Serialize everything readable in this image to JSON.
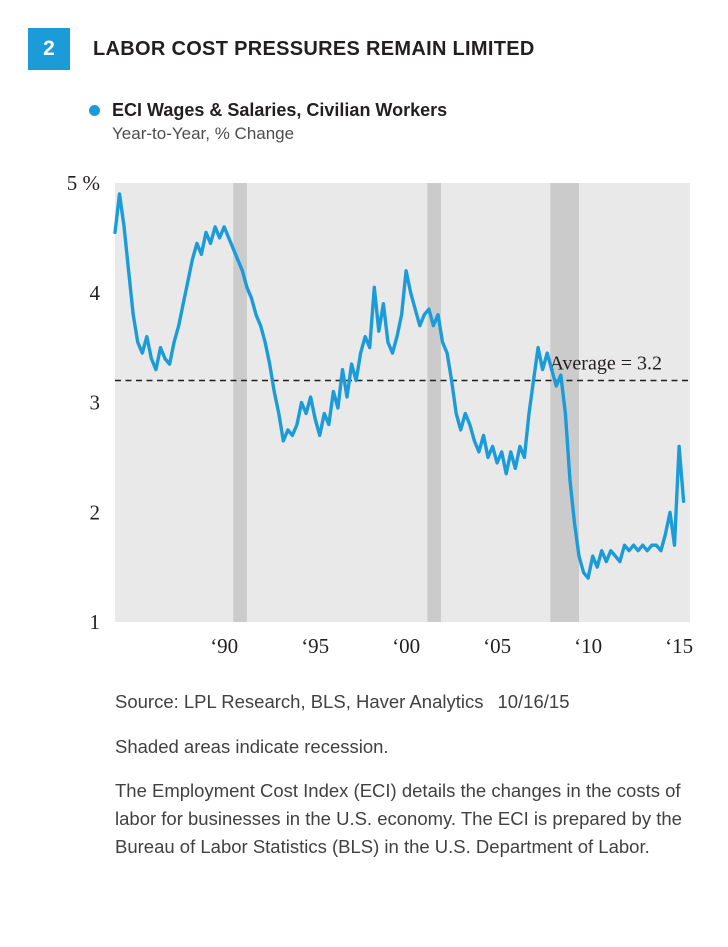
{
  "page": {
    "figure_number": "2",
    "title": "LABOR COST PRESSURES REMAIN LIMITED"
  },
  "legend": {
    "series": "ECI Wages & Salaries, Civilian Workers",
    "subtitle": "Year-to-Year, % Change"
  },
  "notes": {
    "source": "Source: LPL Research, BLS, Haver Analytics",
    "date": "10/16/15",
    "recession_note": "Shaded areas indicate recession.",
    "description": "The Employment Cost Index (ECI) details the changes in the costs of labor for businesses in the U.S. economy. The ECI is prepared by the Bureau of Labor Statistics (BLS) in the U.S. Department of Labor."
  },
  "colors": {
    "accent_blue": "#1b9cd8",
    "plot_background": "#e9e9e9",
    "recession_band": "#cbcbcb",
    "text_dark": "#231f20"
  },
  "chart_data": {
    "type": "line",
    "title": "LABOR COST PRESSURES REMAIN LIMITED",
    "series_label": "ECI Wages & Salaries, Civilian Workers",
    "series_sublabel": "Year-to-Year, % Change",
    "xlabel": "",
    "ylabel": "% (Year-to-Year Change)",
    "x_start": 1984.0,
    "x_step": 0.25,
    "xlim": [
      1984.0,
      2015.6
    ],
    "ylim": [
      1,
      5
    ],
    "grid": false,
    "legend_position": "top-left",
    "line_color": "#1b9cd8",
    "plot_bg": "#e9e9e9",
    "recession_color": "#cbcbcb",
    "average": 3.2,
    "average_label": "Average = 3.2",
    "y_ticks": [
      {
        "value": 5,
        "label": "5 %"
      },
      {
        "value": 4,
        "label": "4"
      },
      {
        "value": 3,
        "label": "3"
      },
      {
        "value": 2,
        "label": "2"
      },
      {
        "value": 1,
        "label": "1"
      }
    ],
    "x_ticks": [
      {
        "value": 1990,
        "label": "‘90"
      },
      {
        "value": 1995,
        "label": "‘95"
      },
      {
        "value": 2000,
        "label": "‘00"
      },
      {
        "value": 2005,
        "label": "‘05"
      },
      {
        "value": 2010,
        "label": "‘10"
      },
      {
        "value": 2015,
        "label": "‘15"
      }
    ],
    "recessions": [
      [
        1990.5,
        1991.25
      ],
      [
        2001.17,
        2001.92
      ],
      [
        2007.92,
        2009.5
      ]
    ],
    "values": [
      4.55,
      4.9,
      4.6,
      4.2,
      3.8,
      3.55,
      3.45,
      3.6,
      3.4,
      3.3,
      3.5,
      3.4,
      3.35,
      3.55,
      3.7,
      3.9,
      4.1,
      4.3,
      4.45,
      4.35,
      4.55,
      4.45,
      4.6,
      4.5,
      4.6,
      4.5,
      4.4,
      4.3,
      4.2,
      4.05,
      3.95,
      3.8,
      3.7,
      3.55,
      3.35,
      3.1,
      2.9,
      2.65,
      2.75,
      2.7,
      2.8,
      3.0,
      2.9,
      3.05,
      2.85,
      2.7,
      2.9,
      2.8,
      3.1,
      2.95,
      3.3,
      3.05,
      3.35,
      3.2,
      3.45,
      3.6,
      3.5,
      4.05,
      3.65,
      3.9,
      3.55,
      3.45,
      3.6,
      3.8,
      4.2,
      4.0,
      3.85,
      3.7,
      3.8,
      3.85,
      3.7,
      3.8,
      3.55,
      3.45,
      3.2,
      2.9,
      2.75,
      2.9,
      2.8,
      2.65,
      2.55,
      2.7,
      2.5,
      2.6,
      2.45,
      2.55,
      2.35,
      2.55,
      2.4,
      2.6,
      2.5,
      2.9,
      3.2,
      3.5,
      3.3,
      3.45,
      3.3,
      3.15,
      3.25,
      2.9,
      2.3,
      1.9,
      1.6,
      1.45,
      1.4,
      1.6,
      1.5,
      1.65,
      1.55,
      1.65,
      1.6,
      1.55,
      1.7,
      1.65,
      1.7,
      1.65,
      1.7,
      1.65,
      1.7,
      1.7,
      1.65,
      1.8,
      2.0,
      1.7,
      2.6,
      2.1
    ]
  }
}
